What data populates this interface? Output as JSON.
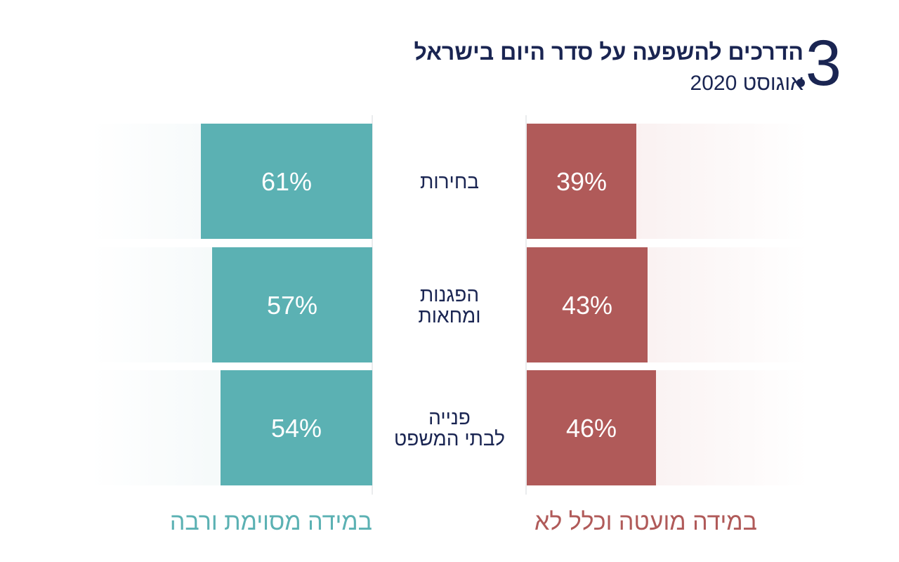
{
  "header": {
    "number": "3",
    "title": "הדרכים להשפעה על סדר היום בישראל",
    "subtitle": "אוגוסט 2020"
  },
  "colors": {
    "positive": "#5bb1b3",
    "negative": "#b05a59",
    "positive_track": "#eaf3f4",
    "negative_track": "#f6e8e8",
    "text": "#1a2552"
  },
  "legend": {
    "positive": "במידה מסוימת ורבה",
    "negative": "במידה מועטה וכלל לא"
  },
  "chart_data": {
    "type": "bar",
    "categories": [
      [
        "בחירות"
      ],
      [
        "הפגנות",
        "ומחאות"
      ],
      [
        "פנייה",
        "לבתי המשפט"
      ]
    ],
    "series": [
      {
        "name": "במידה מסוימת ורבה",
        "values": [
          61,
          57,
          54
        ],
        "labels": [
          "61%",
          "57%",
          "54%"
        ]
      },
      {
        "name": "במידה מועטה וכלל לא",
        "values": [
          39,
          43,
          46
        ],
        "labels": [
          "39%",
          "43%",
          "46%"
        ]
      }
    ],
    "ylim": [
      0,
      100
    ],
    "grid": false
  }
}
